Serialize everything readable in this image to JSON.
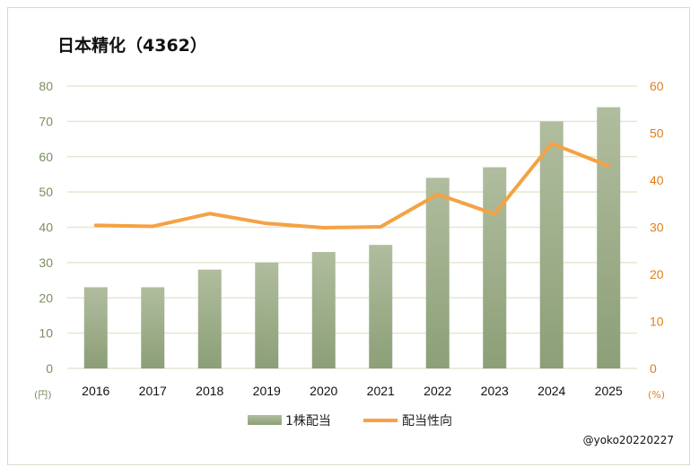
{
  "chart_data": {
    "type": "bar+line",
    "title": "日本精化（4362）",
    "categories": [
      "2016",
      "2017",
      "2018",
      "2019",
      "2020",
      "2021",
      "2022",
      "2023",
      "2024",
      "2025"
    ],
    "series": [
      {
        "name": "1株配当",
        "type": "bar",
        "axis": "left",
        "color": "#9fb08a",
        "values": [
          23,
          23,
          28,
          30,
          33,
          35,
          54,
          57,
          70,
          74
        ]
      },
      {
        "name": "配当性向",
        "type": "line",
        "axis": "right",
        "color": "#f4a244",
        "values": [
          30.4,
          30.2,
          32.9,
          30.8,
          29.9,
          30.1,
          37.0,
          32.8,
          47.8,
          43.0
        ]
      }
    ],
    "y_left": {
      "label": "(円)",
      "ylim": [
        0,
        80
      ],
      "ticks": [
        0,
        10,
        20,
        30,
        40,
        50,
        60,
        70,
        80
      ],
      "color": "#7a8f5e"
    },
    "y_right": {
      "label": "(%)",
      "ylim": [
        0,
        60
      ],
      "ticks": [
        0,
        10,
        20,
        30,
        40,
        50,
        60
      ],
      "color": "#e0801a"
    },
    "grid": true,
    "legend_position": "bottom"
  },
  "credit": "@yoko20220227"
}
